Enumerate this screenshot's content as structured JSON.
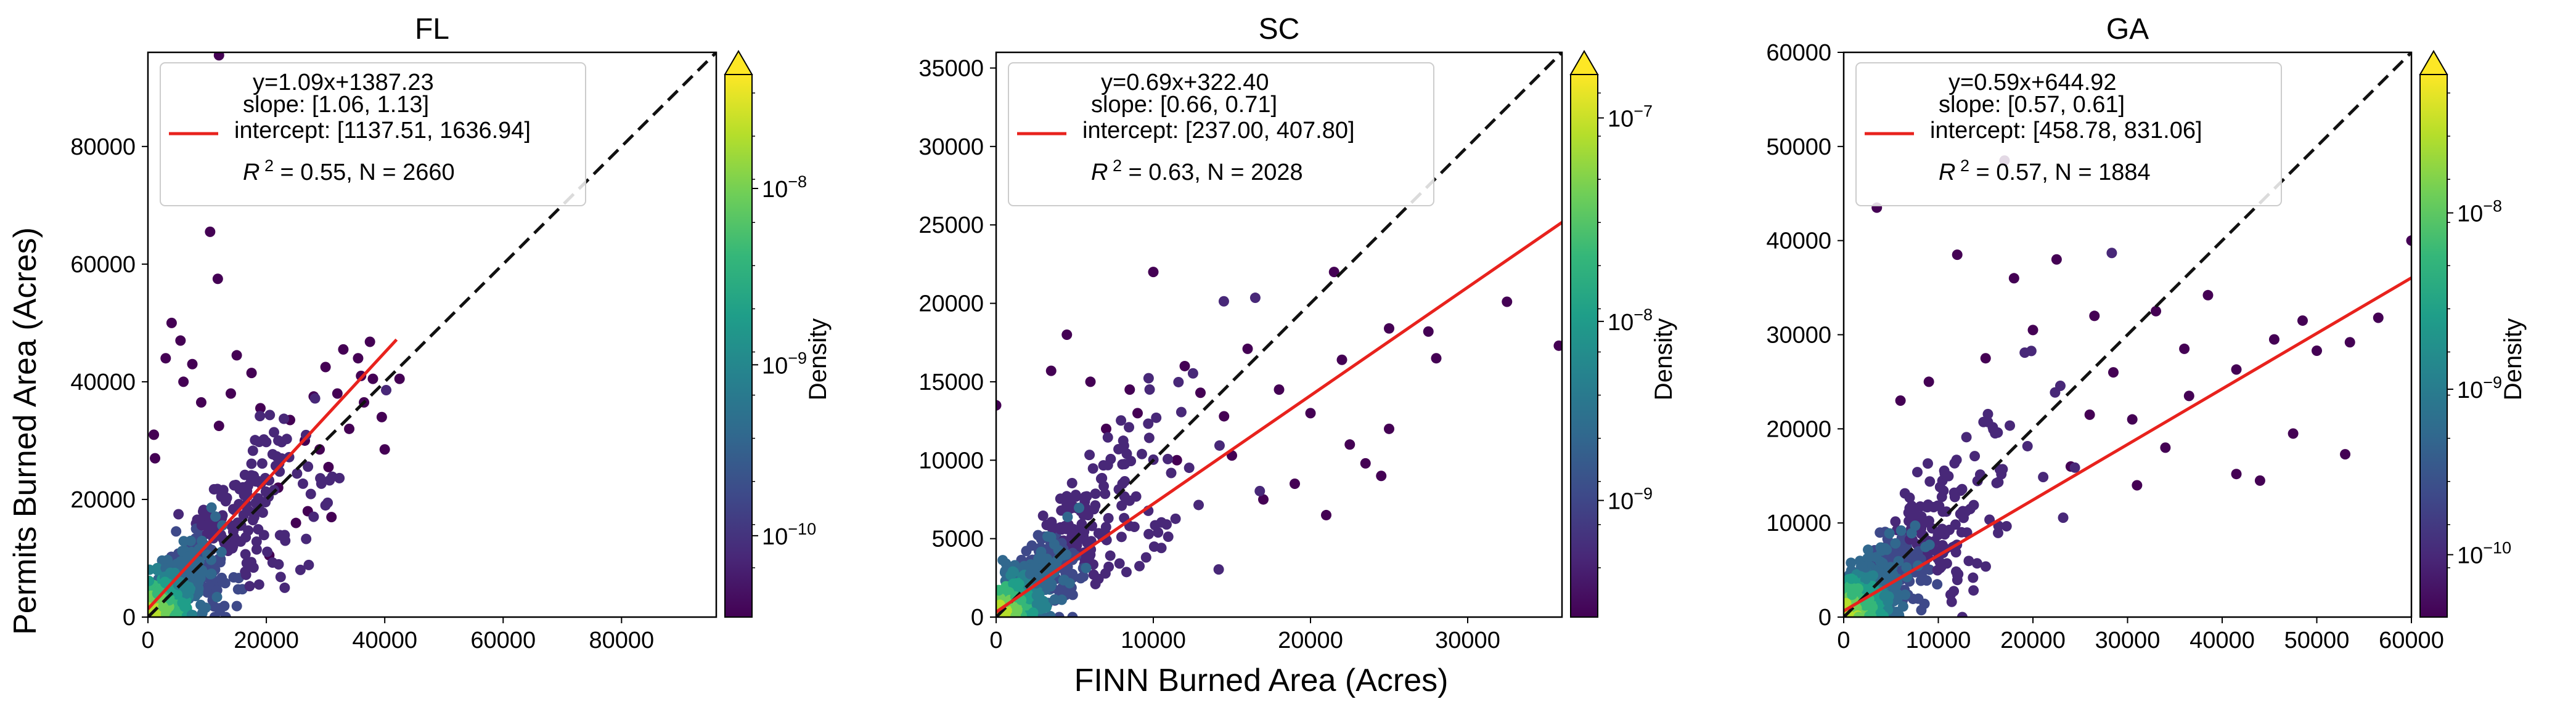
{
  "figure": {
    "ylabel": "Permits Burned Area (Acres)",
    "xlabel": "FINN Burned Area (Acres)"
  },
  "colors": {
    "fit_line": "#e8221d",
    "identity_line": "#111111",
    "viridis": [
      "#440154",
      "#482878",
      "#3e4989",
      "#31688e",
      "#26828e",
      "#1f9e89",
      "#35b779",
      "#6ece58",
      "#b5de2b",
      "#fde725"
    ]
  },
  "chart_data": [
    {
      "type": "scatter",
      "title": "FL",
      "xlim": [
        0,
        96000
      ],
      "ylim": [
        0,
        96000
      ],
      "xticks": [
        "0",
        "20000",
        "40000",
        "60000",
        "80000"
      ],
      "xtick_values": [
        0,
        20000,
        40000,
        60000,
        80000
      ],
      "yticks": [
        "0",
        "20000",
        "40000",
        "60000",
        "80000"
      ],
      "ytick_values": [
        0,
        20000,
        40000,
        60000,
        80000
      ],
      "fit": {
        "slope": 1.09,
        "intercept": 1387.23,
        "x_end": 42000
      },
      "legend": {
        "equation": "y=1.09x+1387.23",
        "slope_ci": "slope: [1.06, 1.13]",
        "intercept_ci": "intercept: [1137.51, 1636.94]",
        "r2_text": "= 0.55, N = 2660"
      },
      "colorbar": {
        "label": "Density",
        "ticks": [
          {
            "exp": "−8",
            "frac": 0.79
          },
          {
            "exp": "−9",
            "frac": 0.465
          },
          {
            "exp": "−10",
            "frac": 0.15
          }
        ]
      },
      "spread": 0.55,
      "outliers": [
        [
          12000,
          95500
        ],
        [
          10500,
          65500
        ],
        [
          11800,
          57500
        ],
        [
          4000,
          50000
        ],
        [
          5500,
          47000
        ],
        [
          3000,
          44000
        ],
        [
          7500,
          43000
        ],
        [
          1000,
          31000
        ],
        [
          1200,
          27000
        ],
        [
          42500,
          40500
        ],
        [
          37500,
          46800
        ],
        [
          33000,
          45500
        ],
        [
          35500,
          44000
        ],
        [
          30000,
          42500
        ],
        [
          38000,
          40500
        ],
        [
          32000,
          38000
        ],
        [
          36500,
          36500
        ],
        [
          28000,
          37500
        ],
        [
          39500,
          34000
        ],
        [
          26500,
          30000
        ],
        [
          34000,
          32000
        ],
        [
          40000,
          28500
        ],
        [
          30500,
          25500
        ],
        [
          24000,
          33500
        ],
        [
          29000,
          28500
        ],
        [
          27000,
          18000
        ],
        [
          31000,
          17000
        ],
        [
          20500,
          10500
        ],
        [
          17500,
          41500
        ],
        [
          14000,
          38000
        ],
        [
          9000,
          36500
        ],
        [
          12000,
          32500
        ],
        [
          36000,
          41000
        ],
        [
          22000,
          22000
        ],
        [
          25000,
          16000
        ],
        [
          15000,
          44500
        ],
        [
          19000,
          35500
        ],
        [
          6000,
          40000
        ]
      ]
    },
    {
      "type": "scatter",
      "title": "SC",
      "xlim": [
        0,
        36000
      ],
      "ylim": [
        0,
        36000
      ],
      "xticks": [
        "0",
        "10000",
        "20000",
        "30000"
      ],
      "xtick_values": [
        0,
        10000,
        20000,
        30000
      ],
      "yticks": [
        "0",
        "5000",
        "10000",
        "15000",
        "20000",
        "25000",
        "30000",
        "35000"
      ],
      "ytick_values": [
        0,
        5000,
        10000,
        15000,
        20000,
        25000,
        30000,
        35000
      ],
      "fit": {
        "slope": 0.69,
        "intercept": 322.4,
        "x_end": 36000
      },
      "legend": {
        "equation": "y=0.69x+322.40",
        "slope_ci": "slope: [0.66, 0.71]",
        "intercept_ci": "intercept: [237.00, 407.80]",
        "r2_text": "= 0.63, N = 2028"
      },
      "colorbar": {
        "label": "Density",
        "ticks": [
          {
            "exp": "−7",
            "frac": 0.92
          },
          {
            "exp": "−8",
            "frac": 0.545
          },
          {
            "exp": "−9",
            "frac": 0.215
          }
        ]
      },
      "spread": 0.5,
      "outliers": [
        [
          10000,
          22000
        ],
        [
          21500,
          22000
        ],
        [
          35800,
          17300
        ],
        [
          32500,
          20100
        ],
        [
          27500,
          18200
        ],
        [
          25000,
          18400
        ],
        [
          22000,
          16400
        ],
        [
          16000,
          17100
        ],
        [
          4500,
          18000
        ],
        [
          18000,
          14500
        ],
        [
          20000,
          13000
        ],
        [
          23500,
          9800
        ],
        [
          22500,
          11000
        ],
        [
          25000,
          12000
        ],
        [
          28000,
          16500
        ],
        [
          13000,
          14300
        ],
        [
          14500,
          12800
        ],
        [
          0,
          13500
        ],
        [
          3500,
          15700
        ],
        [
          6000,
          15000
        ],
        [
          8500,
          14500
        ],
        [
          11500,
          10000
        ],
        [
          15000,
          10300
        ],
        [
          19000,
          8500
        ],
        [
          17000,
          7500
        ],
        [
          21000,
          6500
        ],
        [
          24500,
          9000
        ],
        [
          12000,
          16000
        ],
        [
          9000,
          13000
        ],
        [
          7000,
          12000
        ]
      ]
    },
    {
      "type": "scatter",
      "title": "GA",
      "xlim": [
        0,
        60000
      ],
      "ylim": [
        0,
        60000
      ],
      "xticks": [
        "0",
        "10000",
        "20000",
        "30000",
        "40000",
        "50000",
        "60000"
      ],
      "xtick_values": [
        0,
        10000,
        20000,
        30000,
        40000,
        50000,
        60000
      ],
      "yticks": [
        "0",
        "10000",
        "20000",
        "30000",
        "40000",
        "50000",
        "60000"
      ],
      "ytick_values": [
        0,
        10000,
        20000,
        30000,
        40000,
        50000,
        60000
      ],
      "fit": {
        "slope": 0.59,
        "intercept": 644.92,
        "x_end": 60000
      },
      "legend": {
        "equation": "y=0.59x+644.92",
        "slope_ci": "slope: [0.57, 0.61]",
        "intercept_ci": "intercept: [458.78, 831.06]",
        "r2_text": "= 0.57, N = 1884"
      },
      "colorbar": {
        "label": "Density",
        "ticks": [
          {
            "exp": "−8",
            "frac": 0.745
          },
          {
            "exp": "−9",
            "frac": 0.42
          },
          {
            "exp": "−10",
            "frac": 0.115
          }
        ]
      },
      "spread": 0.5,
      "outliers": [
        [
          3500,
          43500
        ],
        [
          12000,
          38500
        ],
        [
          22500,
          38000
        ],
        [
          60000,
          40000
        ],
        [
          38500,
          34200
        ],
        [
          33000,
          32500
        ],
        [
          26500,
          32000
        ],
        [
          45500,
          29500
        ],
        [
          48500,
          31500
        ],
        [
          53500,
          29200
        ],
        [
          56500,
          31800
        ],
        [
          50000,
          28300
        ],
        [
          41500,
          26300
        ],
        [
          36000,
          28500
        ],
        [
          36500,
          23500
        ],
        [
          41500,
          15200
        ],
        [
          47500,
          19500
        ],
        [
          53000,
          17300
        ],
        [
          44000,
          14500
        ],
        [
          28500,
          26000
        ],
        [
          26000,
          21500
        ],
        [
          30500,
          21000
        ],
        [
          18000,
          36000
        ],
        [
          20000,
          30500
        ],
        [
          15000,
          27500
        ],
        [
          24000,
          16000
        ],
        [
          31000,
          14000
        ],
        [
          34000,
          18000
        ],
        [
          17000,
          48500
        ],
        [
          9000,
          25000
        ],
        [
          6000,
          23000
        ]
      ]
    }
  ]
}
